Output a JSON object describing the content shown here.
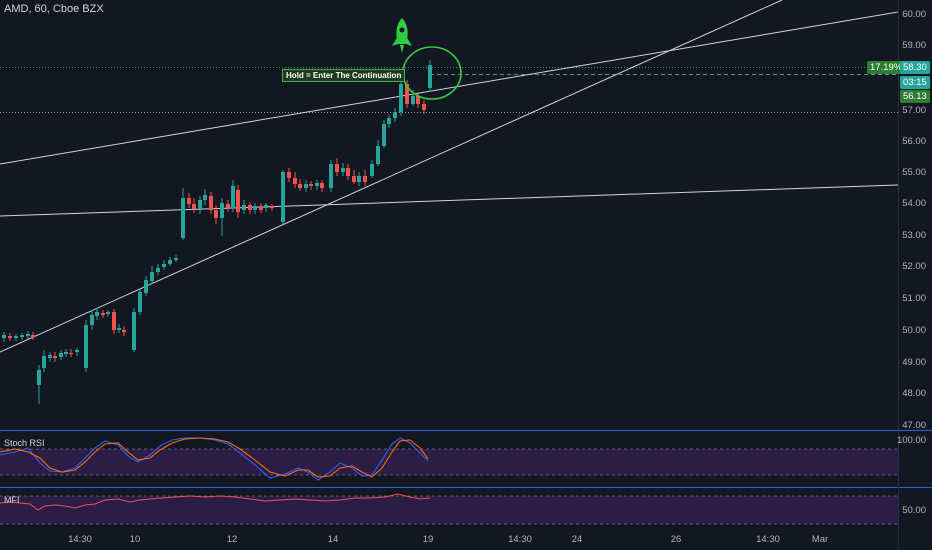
{
  "header": {
    "symbol": "AMD, 60, Cboe BZX"
  },
  "price_axis": {
    "labels": [
      "60.00",
      "59.00",
      "58.00",
      "57.00",
      "56.00",
      "55.00",
      "54.00",
      "53.00",
      "52.00",
      "51.00",
      "50.00",
      "49.00",
      "48.00",
      "47.00"
    ],
    "badges": {
      "percent": "17.19%",
      "price": "58.30",
      "countdown": "03:15",
      "level": "56.13",
      "level_color": "#26a69a",
      "percent_color": "#2e7d32"
    }
  },
  "time_axis": {
    "labels": [
      "14:30",
      "10",
      "12",
      "14",
      "19",
      "14:30",
      "24",
      "26",
      "14:30",
      "Mar"
    ]
  },
  "annotation": {
    "callout": "Hold = Enter The Continuation",
    "rocket_icon": "rocket-icon"
  },
  "panes": {
    "stoch_rsi": {
      "title": "Stoch RSI",
      "value": "100.00"
    },
    "mfi": {
      "title": "MFI",
      "value": "50.00"
    }
  },
  "colors": {
    "up": "#26a69a",
    "down": "#ef5350",
    "background": "#131722",
    "annotation": "#2ecc40"
  }
}
